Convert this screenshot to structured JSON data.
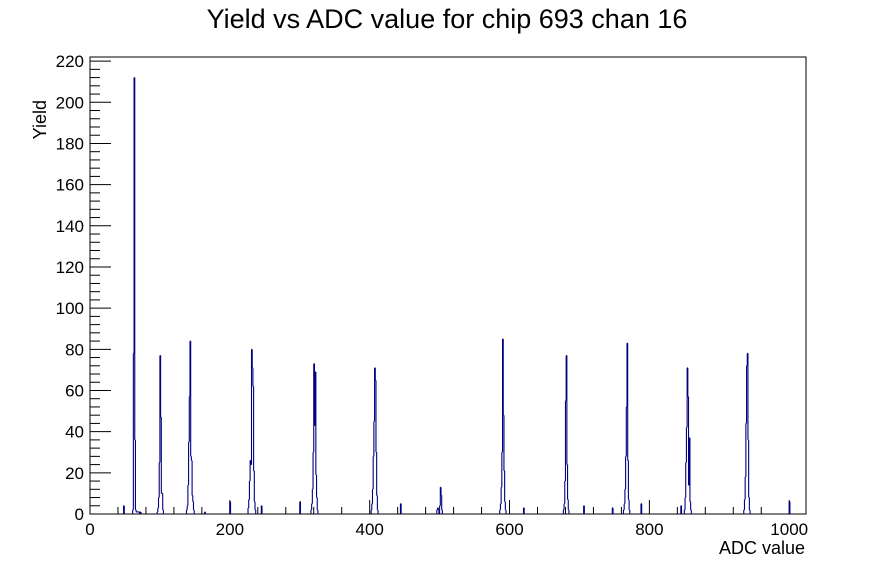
{
  "chart_data": {
    "type": "histogram",
    "title": "Yield vs ADC value for chip 693 chan 16",
    "xlabel": "ADC value",
    "ylabel": "Yield",
    "xlim": [
      0,
      1024
    ],
    "ylim": [
      0,
      222
    ],
    "grid": false,
    "legend": "none",
    "x_ticks": [
      0,
      200,
      400,
      600,
      800,
      1000
    ],
    "x_tick_labels": [
      "0",
      "200",
      "400",
      "600",
      "800",
      "1000"
    ],
    "y_ticks": [
      0,
      20,
      40,
      60,
      80,
      100,
      120,
      140,
      160,
      180,
      200,
      220
    ],
    "y_tick_labels": [
      "0",
      "20",
      "40",
      "60",
      "80",
      "100",
      "120",
      "140",
      "160",
      "180",
      "200",
      "220"
    ],
    "line_color": "#000080",
    "bins": [
      [
        48,
        4
      ],
      [
        61,
        2
      ],
      [
        62,
        78
      ],
      [
        63,
        212
      ],
      [
        64,
        36
      ],
      [
        65,
        2
      ],
      [
        66,
        1
      ],
      [
        67,
        1
      ],
      [
        68,
        1
      ],
      [
        69,
        1
      ],
      [
        70,
        1
      ],
      [
        72,
        1
      ],
      [
        96,
        1
      ],
      [
        97,
        3
      ],
      [
        98,
        8
      ],
      [
        99,
        25
      ],
      [
        100,
        77
      ],
      [
        101,
        47
      ],
      [
        102,
        10
      ],
      [
        103,
        10
      ],
      [
        104,
        2
      ],
      [
        138,
        2
      ],
      [
        139,
        4
      ],
      [
        140,
        14
      ],
      [
        141,
        35
      ],
      [
        142,
        57
      ],
      [
        143,
        84
      ],
      [
        144,
        28
      ],
      [
        145,
        26
      ],
      [
        146,
        9
      ],
      [
        147,
        6
      ],
      [
        148,
        2
      ],
      [
        164,
        1
      ],
      [
        200,
        6
      ],
      [
        226,
        3
      ],
      [
        227,
        7
      ],
      [
        228,
        16
      ],
      [
        229,
        26
      ],
      [
        230,
        24
      ],
      [
        231,
        80
      ],
      [
        232,
        71
      ],
      [
        233,
        62
      ],
      [
        234,
        21
      ],
      [
        235,
        6
      ],
      [
        236,
        2
      ],
      [
        245,
        4
      ],
      [
        300,
        6
      ],
      [
        316,
        2
      ],
      [
        317,
        5
      ],
      [
        318,
        12
      ],
      [
        319,
        30
      ],
      [
        320,
        73
      ],
      [
        321,
        43
      ],
      [
        322,
        69
      ],
      [
        323,
        19
      ],
      [
        324,
        8
      ],
      [
        325,
        2
      ],
      [
        402,
        2
      ],
      [
        403,
        5
      ],
      [
        404,
        12
      ],
      [
        405,
        28
      ],
      [
        406,
        45
      ],
      [
        407,
        71
      ],
      [
        408,
        65
      ],
      [
        409,
        30
      ],
      [
        410,
        9
      ],
      [
        411,
        2
      ],
      [
        444,
        5
      ],
      [
        496,
        2
      ],
      [
        497,
        3
      ],
      [
        498,
        2
      ],
      [
        500,
        4
      ],
      [
        501,
        13
      ],
      [
        502,
        9
      ],
      [
        503,
        2
      ],
      [
        586,
        2
      ],
      [
        587,
        5
      ],
      [
        588,
        13
      ],
      [
        589,
        30
      ],
      [
        590,
        85
      ],
      [
        591,
        48
      ],
      [
        592,
        21
      ],
      [
        593,
        6
      ],
      [
        594,
        2
      ],
      [
        620,
        3
      ],
      [
        677,
        2
      ],
      [
        678,
        5
      ],
      [
        679,
        16
      ],
      [
        680,
        55
      ],
      [
        681,
        77
      ],
      [
        682,
        24
      ],
      [
        683,
        7
      ],
      [
        684,
        2
      ],
      [
        706,
        4
      ],
      [
        747,
        3
      ],
      [
        763,
        2
      ],
      [
        764,
        5
      ],
      [
        765,
        12
      ],
      [
        766,
        28
      ],
      [
        767,
        52
      ],
      [
        768,
        83
      ],
      [
        769,
        26
      ],
      [
        770,
        7
      ],
      [
        771,
        2
      ],
      [
        788,
        5
      ],
      [
        845,
        4
      ],
      [
        850,
        2
      ],
      [
        851,
        8
      ],
      [
        852,
        25
      ],
      [
        853,
        42
      ],
      [
        854,
        71
      ],
      [
        855,
        57
      ],
      [
        856,
        14
      ],
      [
        857,
        37
      ],
      [
        858,
        6
      ],
      [
        859,
        2
      ],
      [
        935,
        2
      ],
      [
        936,
        7
      ],
      [
        937,
        18
      ],
      [
        938,
        44
      ],
      [
        939,
        72
      ],
      [
        940,
        78
      ],
      [
        941,
        36
      ],
      [
        942,
        8
      ],
      [
        943,
        2
      ],
      [
        1000,
        6
      ]
    ]
  }
}
